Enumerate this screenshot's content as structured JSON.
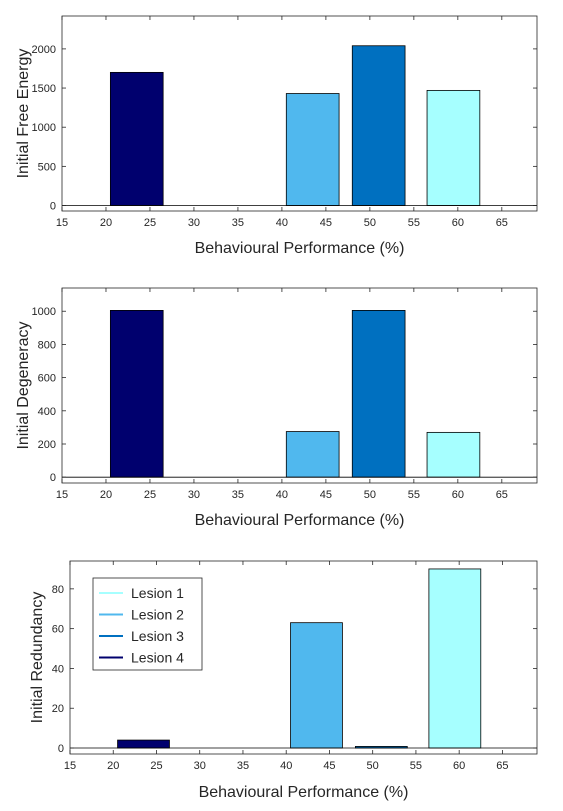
{
  "chart_data": [
    {
      "type": "bar",
      "title": "",
      "xlabel": "Behavioural Performance (%)",
      "ylabel": "Initial Free Energy",
      "xlim": [
        15,
        69
      ],
      "ylim": [
        -70,
        2420
      ],
      "xticks": [
        15,
        20,
        25,
        30,
        35,
        40,
        45,
        50,
        55,
        60,
        65
      ],
      "yticks": [
        0,
        500,
        1000,
        1500,
        2000
      ],
      "baseline": 0,
      "grid": false,
      "bars": [
        {
          "x_start": 20.5,
          "x_end": 26.5,
          "value": 1700,
          "series": "Lesion 4"
        },
        {
          "x_start": 40.5,
          "x_end": 46.5,
          "value": 1430,
          "series": "Lesion 2"
        },
        {
          "x_start": 48,
          "x_end": 54,
          "value": 2040,
          "series": "Lesion 3"
        },
        {
          "x_start": 56.5,
          "x_end": 62.5,
          "value": 1470,
          "series": "Lesion 1"
        }
      ]
    },
    {
      "type": "bar",
      "title": "",
      "xlabel": "Behavioural Performance (%)",
      "ylabel": "Initial Degeneracy",
      "xlim": [
        15,
        69
      ],
      "ylim": [
        -35,
        1140
      ],
      "xticks": [
        15,
        20,
        25,
        30,
        35,
        40,
        45,
        50,
        55,
        60,
        65
      ],
      "yticks": [
        0,
        200,
        400,
        600,
        800,
        1000
      ],
      "baseline": 0,
      "grid": false,
      "bars": [
        {
          "x_start": 20.5,
          "x_end": 26.5,
          "value": 1005,
          "series": "Lesion 4"
        },
        {
          "x_start": 40.5,
          "x_end": 46.5,
          "value": 275,
          "series": "Lesion 2"
        },
        {
          "x_start": 48,
          "x_end": 54,
          "value": 1005,
          "series": "Lesion 3"
        },
        {
          "x_start": 56.5,
          "x_end": 62.5,
          "value": 270,
          "series": "Lesion 1"
        }
      ]
    },
    {
      "type": "bar",
      "title": "",
      "xlabel": "Behavioural Performance (%)",
      "ylabel": "Initial Redundancy",
      "xlim": [
        15,
        69
      ],
      "ylim": [
        -3,
        94
      ],
      "xticks": [
        15,
        20,
        25,
        30,
        35,
        40,
        45,
        50,
        55,
        60,
        65
      ],
      "yticks": [
        0,
        20,
        40,
        60,
        80
      ],
      "baseline": 0,
      "grid": false,
      "legend": {
        "placement": "upper-left",
        "entries": [
          "Lesion 1",
          "Lesion 2",
          "Lesion 3",
          "Lesion 4"
        ]
      },
      "bars": [
        {
          "x_start": 20.5,
          "x_end": 26.5,
          "value": 4,
          "series": "Lesion 4"
        },
        {
          "x_start": 40.5,
          "x_end": 46.5,
          "value": 63,
          "series": "Lesion 2"
        },
        {
          "x_start": 48,
          "x_end": 54,
          "value": 0.8,
          "series": "Lesion 3"
        },
        {
          "x_start": 56.5,
          "x_end": 62.5,
          "value": 90,
          "series": "Lesion 1"
        }
      ]
    }
  ],
  "series_colors": {
    "Lesion 1": "#a6ffff",
    "Lesion 2": "#50b8ee",
    "Lesion 3": "#0070c0",
    "Lesion 4": "#00006e"
  }
}
